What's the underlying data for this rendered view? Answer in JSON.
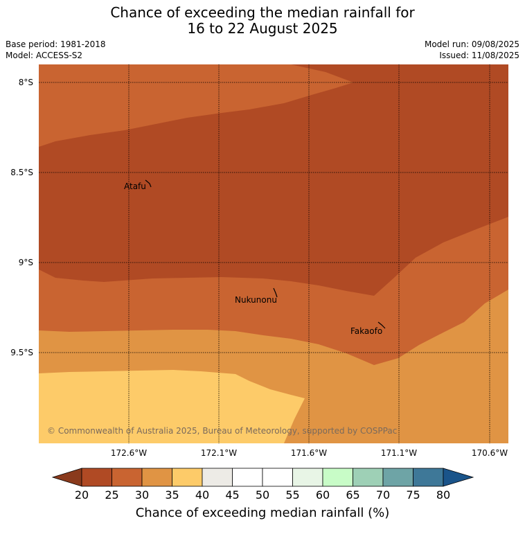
{
  "title": {
    "line1": "Chance of exceeding the median rainfall for",
    "line2": "16 to 22 August 2025"
  },
  "meta": {
    "base_period": "Base period: 1981-2018",
    "model": "Model: ACCESS-S2",
    "model_run": "Model run: 09/08/2025",
    "issued": "Issued: 11/08/2025"
  },
  "map": {
    "lat_labels": [
      "8°S",
      "8.5°S",
      "9°S",
      "9.5°S"
    ],
    "lon_labels": [
      "172.6°W",
      "172.1°W",
      "171.6°W",
      "171.1°W",
      "170.6°W"
    ],
    "places": [
      "Atafu",
      "Nukunonu",
      "Fakaofo"
    ],
    "credit": "© Commonwealth of Australia 2025, Bureau of Meteorology, supported by COSPPac",
    "colors": {
      "band_20_25": "#b04a24",
      "band_25_30": "#c96431",
      "band_30_35": "#e09444",
      "band_35_40": "#fdcb69"
    }
  },
  "colorbar": {
    "ticks": [
      "20",
      "25",
      "30",
      "35",
      "40",
      "45",
      "50",
      "55",
      "60",
      "65",
      "70",
      "75",
      "80"
    ],
    "colors": [
      "#8a3a1c",
      "#b04a24",
      "#c96431",
      "#e09444",
      "#fdcb69",
      "#edebe6",
      "#ffffff",
      "#ffffff",
      "#e8f5e6",
      "#c8fcc7",
      "#9ed0b6",
      "#6ea4a6",
      "#3e7898",
      "#1a548a"
    ],
    "title": "Chance of exceeding median rainfall (%)"
  }
}
